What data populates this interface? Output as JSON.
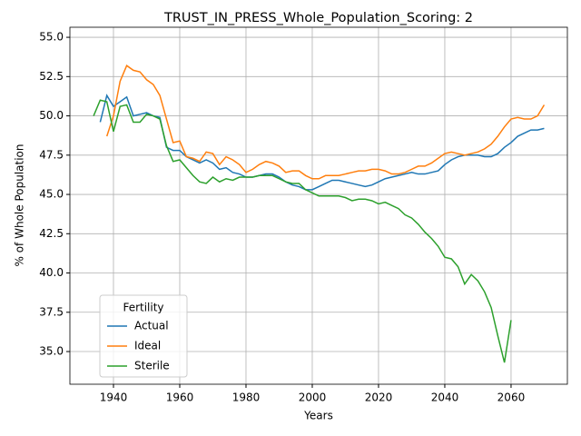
{
  "chart_data": {
    "type": "line",
    "title": "TRUST_IN_PRESS_Whole_Population_Scoring: 2",
    "x_label": "Years",
    "y_label": "% of Whole Population",
    "legend_title": "Fertility",
    "legend": "lower left",
    "grid": true,
    "x": [
      1934,
      1936,
      1938,
      1940,
      1942,
      1944,
      1946,
      1948,
      1950,
      1952,
      1954,
      1956,
      1958,
      1960,
      1962,
      1964,
      1966,
      1968,
      1970,
      1972,
      1974,
      1976,
      1978,
      1980,
      1982,
      1984,
      1986,
      1988,
      1990,
      1992,
      1994,
      1996,
      1998,
      2000,
      2002,
      2004,
      2006,
      2008,
      2010,
      2012,
      2014,
      2016,
      2018,
      2020,
      2022,
      2024,
      2026,
      2028,
      2030,
      2032,
      2034,
      2036,
      2038,
      2040,
      2042,
      2044,
      2046,
      2048,
      2050,
      2052,
      2054,
      2056,
      2058,
      2060,
      2062,
      2064,
      2066,
      2068,
      2070
    ],
    "series": [
      {
        "name": "Actual",
        "color": "#1f77b4",
        "values": [
          null,
          49.6,
          51.3,
          50.6,
          50.9,
          51.2,
          50.0,
          50.1,
          50.2,
          50.0,
          49.9,
          48.0,
          47.8,
          47.8,
          47.4,
          47.2,
          47.0,
          47.2,
          47.0,
          46.6,
          46.7,
          46.4,
          46.3,
          46.1,
          46.1,
          46.2,
          46.3,
          46.3,
          46.1,
          45.8,
          45.6,
          45.5,
          45.3,
          45.3,
          45.5,
          45.7,
          45.9,
          45.9,
          45.8,
          45.7,
          45.6,
          45.5,
          45.6,
          45.8,
          46.0,
          46.1,
          46.2,
          46.3,
          46.4,
          46.3,
          46.3,
          46.4,
          46.5,
          46.9,
          47.2,
          47.4,
          47.5,
          47.5,
          47.5,
          47.4,
          47.4,
          47.6,
          48.0,
          48.3,
          48.7,
          48.9,
          49.1,
          49.1,
          49.2
        ]
      },
      {
        "name": "Ideal",
        "color": "#ff7f0e",
        "values": [
          null,
          null,
          48.7,
          50.0,
          52.2,
          53.2,
          52.9,
          52.8,
          52.3,
          52.0,
          51.3,
          49.8,
          48.3,
          48.4,
          47.4,
          47.3,
          47.1,
          47.7,
          47.6,
          46.9,
          47.4,
          47.2,
          46.9,
          46.4,
          46.6,
          46.9,
          47.1,
          47.0,
          46.8,
          46.4,
          46.5,
          46.5,
          46.2,
          46.0,
          46.0,
          46.2,
          46.2,
          46.2,
          46.3,
          46.4,
          46.5,
          46.5,
          46.6,
          46.6,
          46.5,
          46.3,
          46.3,
          46.4,
          46.6,
          46.8,
          46.8,
          47.0,
          47.3,
          47.6,
          47.7,
          47.6,
          47.5,
          47.6,
          47.7,
          47.9,
          48.2,
          48.7,
          49.3,
          49.8,
          49.9,
          49.8,
          49.8,
          50.0,
          50.7
        ]
      },
      {
        "name": "Sterile",
        "color": "#2ca02c",
        "values": [
          50.0,
          51.0,
          50.9,
          49.0,
          50.6,
          50.7,
          49.6,
          49.6,
          50.1,
          50.0,
          49.8,
          48.1,
          47.1,
          47.2,
          46.7,
          46.2,
          45.8,
          45.7,
          46.1,
          45.8,
          46.0,
          45.9,
          46.1,
          46.1,
          46.1,
          46.2,
          46.2,
          46.2,
          46.0,
          45.8,
          45.7,
          45.7,
          45.3,
          45.1,
          44.9,
          44.9,
          44.9,
          44.9,
          44.8,
          44.6,
          44.7,
          44.7,
          44.6,
          44.4,
          44.5,
          44.3,
          44.1,
          43.7,
          43.5,
          43.1,
          42.6,
          42.2,
          41.7,
          41.0,
          40.9,
          40.4,
          39.3,
          39.9,
          39.5,
          38.8,
          37.8,
          36.0,
          34.3,
          37.0,
          null,
          null,
          null,
          null,
          null
        ]
      }
    ],
    "xlim": [
      1926.85,
      2077
    ],
    "xticks": [
      1940,
      1960,
      1980,
      2000,
      2020,
      2040,
      2060
    ],
    "ylim": [
      32.92,
      55.64
    ],
    "yticks": [
      {
        "value": 35,
        "label": "35.0"
      },
      {
        "value": 37.5,
        "label": "37.5"
      },
      {
        "value": 40,
        "label": "40.0"
      },
      {
        "value": 42.5,
        "label": "42.5"
      },
      {
        "value": 45,
        "label": "45.0"
      },
      {
        "value": 47.5,
        "label": "47.5"
      },
      {
        "value": 50,
        "label": "50.0"
      },
      {
        "value": 52.5,
        "label": "52.5"
      },
      {
        "value": 55,
        "label": "55.0"
      }
    ]
  }
}
